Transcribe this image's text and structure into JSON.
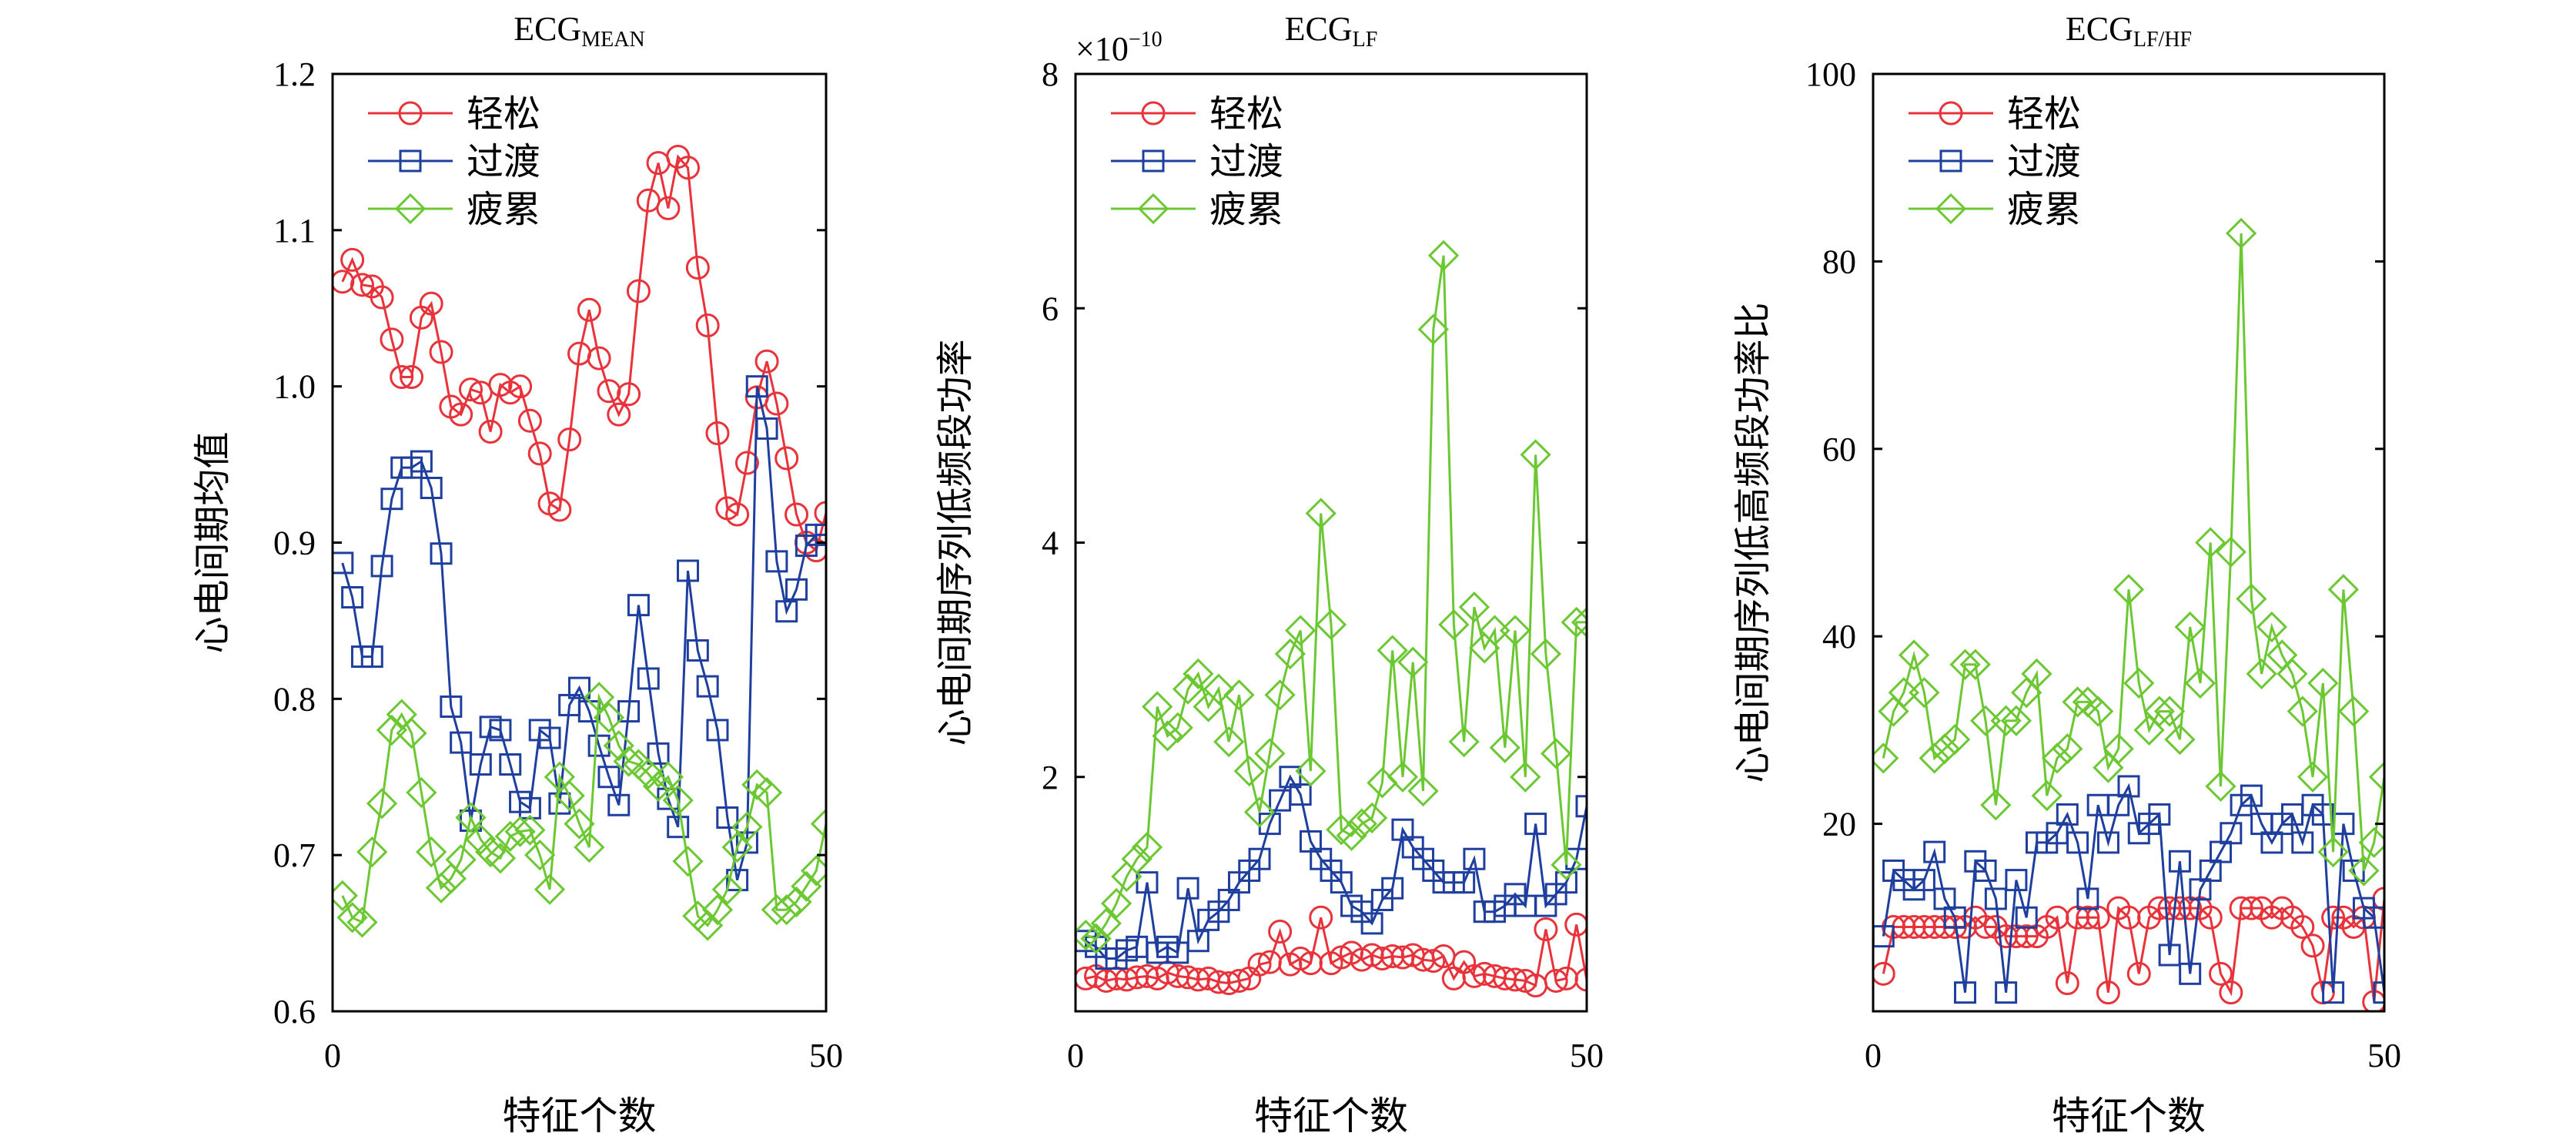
{
  "chart_data": [
    {
      "type": "line",
      "title": "ECG",
      "title_sub": "MEAN",
      "xlabel": "特征个数",
      "ylabel": "心电间期均值",
      "xlim": [
        0,
        50
      ],
      "ylim": [
        0.6,
        1.2
      ],
      "xticks": [
        "0",
        "50"
      ],
      "xtick_values": [
        0,
        50
      ],
      "yticks": [
        "0.6",
        "0.7",
        "0.8",
        "0.9",
        "1.0",
        "1.1",
        "1.2"
      ],
      "ytick_values": [
        0.6,
        0.7,
        0.8,
        0.9,
        1.0,
        1.1,
        1.2
      ],
      "legend_position": "top-left",
      "series": [
        {
          "name": "轻松",
          "color": "#e8333b",
          "marker": "circle",
          "values": [
            1.067,
            1.081,
            1.065,
            1.064,
            1.057,
            1.03,
            1.006,
            1.006,
            1.044,
            1.053,
            1.022,
            0.987,
            0.982,
            0.998,
            0.996,
            0.971,
            1.001,
            0.996,
            1.0,
            0.978,
            0.957,
            0.925,
            0.921,
            0.966,
            1.021,
            1.049,
            1.018,
            0.997,
            0.982,
            0.995,
            1.061,
            1.119,
            1.143,
            1.114,
            1.147,
            1.14,
            1.076,
            1.039,
            0.97,
            0.922,
            0.918,
            0.951,
            0.993,
            1.016,
            0.989,
            0.954,
            0.918,
            0.9,
            0.895,
            0.919
          ]
        },
        {
          "name": "过渡",
          "color": "#1f3f9e",
          "marker": "square",
          "values": [
            0.887,
            0.865,
            0.827,
            0.827,
            0.885,
            0.928,
            0.948,
            0.948,
            0.952,
            0.935,
            0.893,
            0.795,
            0.772,
            0.722,
            0.758,
            0.782,
            0.78,
            0.758,
            0.734,
            0.73,
            0.78,
            0.775,
            0.733,
            0.796,
            0.807,
            0.792,
            0.77,
            0.75,
            0.732,
            0.792,
            0.86,
            0.813,
            0.765,
            0.736,
            0.718,
            0.882,
            0.831,
            0.808,
            0.78,
            0.724,
            0.684,
            0.708,
            1.0,
            0.973,
            0.888,
            0.856,
            0.87,
            0.898,
            0.905,
            0.905
          ]
        },
        {
          "name": "疲累",
          "color": "#6cc832",
          "marker": "diamond",
          "values": [
            0.674,
            0.66,
            0.657,
            0.702,
            0.733,
            0.78,
            0.79,
            0.778,
            0.74,
            0.702,
            0.679,
            0.685,
            0.697,
            0.724,
            0.71,
            0.702,
            0.698,
            0.712,
            0.715,
            0.716,
            0.7,
            0.678,
            0.75,
            0.738,
            0.72,
            0.705,
            0.801,
            0.788,
            0.77,
            0.76,
            0.758,
            0.752,
            0.744,
            0.75,
            0.735,
            0.696,
            0.661,
            0.655,
            0.665,
            0.678,
            0.705,
            0.718,
            0.745,
            0.74,
            0.665,
            0.665,
            0.67,
            0.68,
            0.69,
            0.72
          ]
        }
      ]
    },
    {
      "type": "line",
      "title": "ECG",
      "title_sub": "LF",
      "xlabel": "特征个数",
      "ylabel": "心电间期序列低频段功率",
      "xlim": [
        0,
        50
      ],
      "ylim": [
        0,
        8
      ],
      "scale_label": "×10",
      "scale_exponent": "−10",
      "xticks": [
        "0",
        "50"
      ],
      "xtick_values": [
        0,
        50
      ],
      "yticks": [
        "2",
        "4",
        "6",
        "8"
      ],
      "ytick_values": [
        2,
        4,
        6,
        8
      ],
      "legend_position": "top-left",
      "series": [
        {
          "name": "轻松",
          "color": "#e8333b",
          "marker": "circle",
          "values": [
            0.28,
            0.3,
            0.26,
            0.28,
            0.27,
            0.29,
            0.3,
            0.28,
            0.33,
            0.3,
            0.29,
            0.27,
            0.28,
            0.25,
            0.24,
            0.26,
            0.28,
            0.4,
            0.42,
            0.68,
            0.4,
            0.45,
            0.41,
            0.8,
            0.41,
            0.46,
            0.5,
            0.44,
            0.48,
            0.45,
            0.47,
            0.46,
            0.48,
            0.44,
            0.43,
            0.47,
            0.28,
            0.42,
            0.3,
            0.32,
            0.3,
            0.28,
            0.27,
            0.26,
            0.22,
            0.7,
            0.26,
            0.28,
            0.74,
            0.27
          ]
        },
        {
          "name": "过渡",
          "color": "#1f3f9e",
          "marker": "square",
          "values": [
            0.6,
            0.55,
            0.45,
            0.45,
            0.52,
            0.55,
            1.1,
            0.5,
            0.55,
            0.5,
            1.05,
            0.6,
            0.78,
            0.85,
            0.95,
            1.1,
            1.2,
            1.3,
            1.6,
            1.8,
            2.0,
            1.85,
            1.45,
            1.3,
            1.2,
            1.1,
            0.9,
            0.85,
            0.75,
            0.95,
            1.05,
            1.55,
            1.4,
            1.3,
            1.2,
            1.1,
            1.1,
            1.1,
            1.3,
            0.85,
            0.85,
            0.9,
            1.0,
            0.9,
            1.6,
            0.9,
            1.0,
            1.1,
            1.3,
            1.75
          ]
        },
        {
          "name": "疲累",
          "color": "#6cc832",
          "marker": "diamond",
          "values": [
            0.65,
            0.62,
            0.75,
            0.92,
            1.15,
            1.3,
            1.4,
            2.6,
            2.35,
            2.42,
            2.75,
            2.88,
            2.6,
            2.75,
            2.3,
            2.7,
            2.05,
            1.7,
            2.2,
            2.7,
            3.05,
            3.25,
            2.05,
            4.25,
            3.3,
            1.55,
            1.5,
            1.6,
            1.65,
            1.95,
            3.08,
            2.0,
            2.98,
            1.88,
            5.82,
            6.45,
            3.3,
            2.3,
            3.45,
            3.1,
            3.25,
            2.25,
            3.25,
            2.0,
            4.75,
            3.05,
            2.2,
            1.25,
            3.32,
            3.32
          ]
        }
      ]
    },
    {
      "type": "line",
      "title": "ECG",
      "title_sub": "LF/HF",
      "xlabel": "特征个数",
      "ylabel": "心电间期序列低高频段功率比",
      "xlim": [
        0,
        50
      ],
      "ylim": [
        0,
        100
      ],
      "xticks": [
        "0",
        "50"
      ],
      "xtick_values": [
        0,
        50
      ],
      "yticks": [
        "20",
        "40",
        "60",
        "80",
        "100"
      ],
      "ytick_values": [
        20,
        40,
        60,
        80,
        100
      ],
      "legend_position": "top-left",
      "series": [
        {
          "name": "轻松",
          "color": "#e8333b",
          "marker": "circle",
          "values": [
            4,
            9,
            9,
            9,
            9,
            9,
            9,
            9,
            9,
            10,
            9,
            9,
            8,
            8,
            8,
            8,
            9,
            10,
            3,
            10,
            10,
            10,
            2,
            11,
            10,
            4,
            10,
            11,
            11,
            11,
            11,
            11,
            10,
            4,
            2,
            11,
            11,
            11,
            10,
            11,
            10,
            9,
            7,
            2,
            10,
            10,
            9,
            10,
            1,
            12
          ]
        },
        {
          "name": "过渡",
          "color": "#1f3f9e",
          "marker": "square",
          "values": [
            8,
            15,
            14,
            13,
            14,
            17,
            12,
            10,
            2,
            16,
            15,
            12,
            2,
            14,
            10,
            18,
            18,
            19,
            21,
            18,
            12,
            22,
            18,
            22,
            24,
            19,
            20,
            21,
            6,
            16,
            4,
            13,
            15,
            17,
            19,
            22,
            23,
            20,
            18,
            20,
            21,
            18,
            22,
            21,
            2,
            20,
            15,
            11,
            10,
            2
          ]
        },
        {
          "name": "疲累",
          "color": "#6cc832",
          "marker": "diamond",
          "values": [
            27,
            32,
            34,
            38,
            34,
            27,
            28,
            29,
            37,
            37,
            31,
            22,
            31,
            31,
            34,
            36,
            23,
            27,
            28,
            33,
            33,
            32,
            26,
            28,
            45,
            35,
            30,
            32,
            32,
            29,
            41,
            35,
            50,
            24,
            49,
            83,
            44,
            36,
            41,
            38,
            36,
            32,
            25,
            35,
            17,
            45,
            32,
            15,
            18,
            25
          ]
        }
      ]
    }
  ]
}
